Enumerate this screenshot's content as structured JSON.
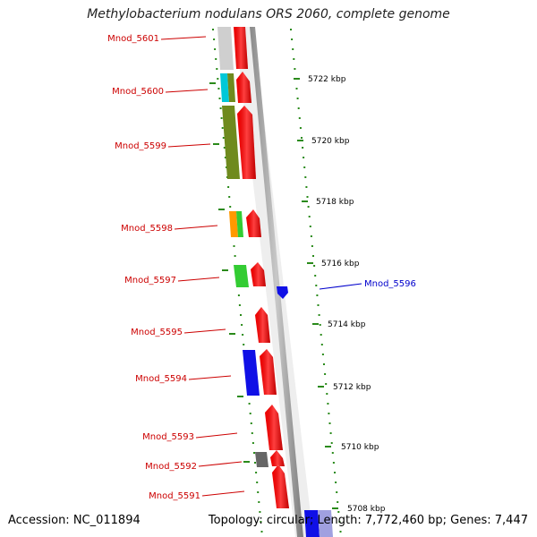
{
  "title": "Methylobacterium nodulans ORS 2060, complete genome",
  "accession": "Accession: NC_011894",
  "topology": "Topology: circular; Length: 7,772,460 bp; Genes: 7,447",
  "colors": {
    "red": "#ff0000",
    "blue": "#1010e6",
    "olive": "#6f8a1e",
    "green": "#33cc33",
    "orange": "#ff9900",
    "cyan": "#00c8d8",
    "gray": "#cfcfcf",
    "darkgray": "#666666",
    "dots": "#2a8a1a",
    "label_red": "#cc0000",
    "label_blue": "#0000cc"
  },
  "scale_labels": [
    "5722 kbp",
    "5720 kbp",
    "5718 kbp",
    "5716 kbp",
    "5714 kbp",
    "5712 kbp",
    "5710 kbp",
    "5708 kbp"
  ],
  "gene_labels": [
    {
      "text": "Mnod_5601",
      "strand": "left"
    },
    {
      "text": "Mnod_5600",
      "strand": "left"
    },
    {
      "text": "Mnod_5599",
      "strand": "left"
    },
    {
      "text": "Mnod_5598",
      "strand": "left"
    },
    {
      "text": "Mnod_5597",
      "strand": "left"
    },
    {
      "text": "Mnod_5596",
      "strand": "right"
    },
    {
      "text": "Mnod_5595",
      "strand": "left"
    },
    {
      "text": "Mnod_5594",
      "strand": "left"
    },
    {
      "text": "Mnod_5593",
      "strand": "left"
    },
    {
      "text": "Mnod_5592",
      "strand": "left"
    },
    {
      "text": "Mnod_5591",
      "strand": "left"
    }
  ]
}
